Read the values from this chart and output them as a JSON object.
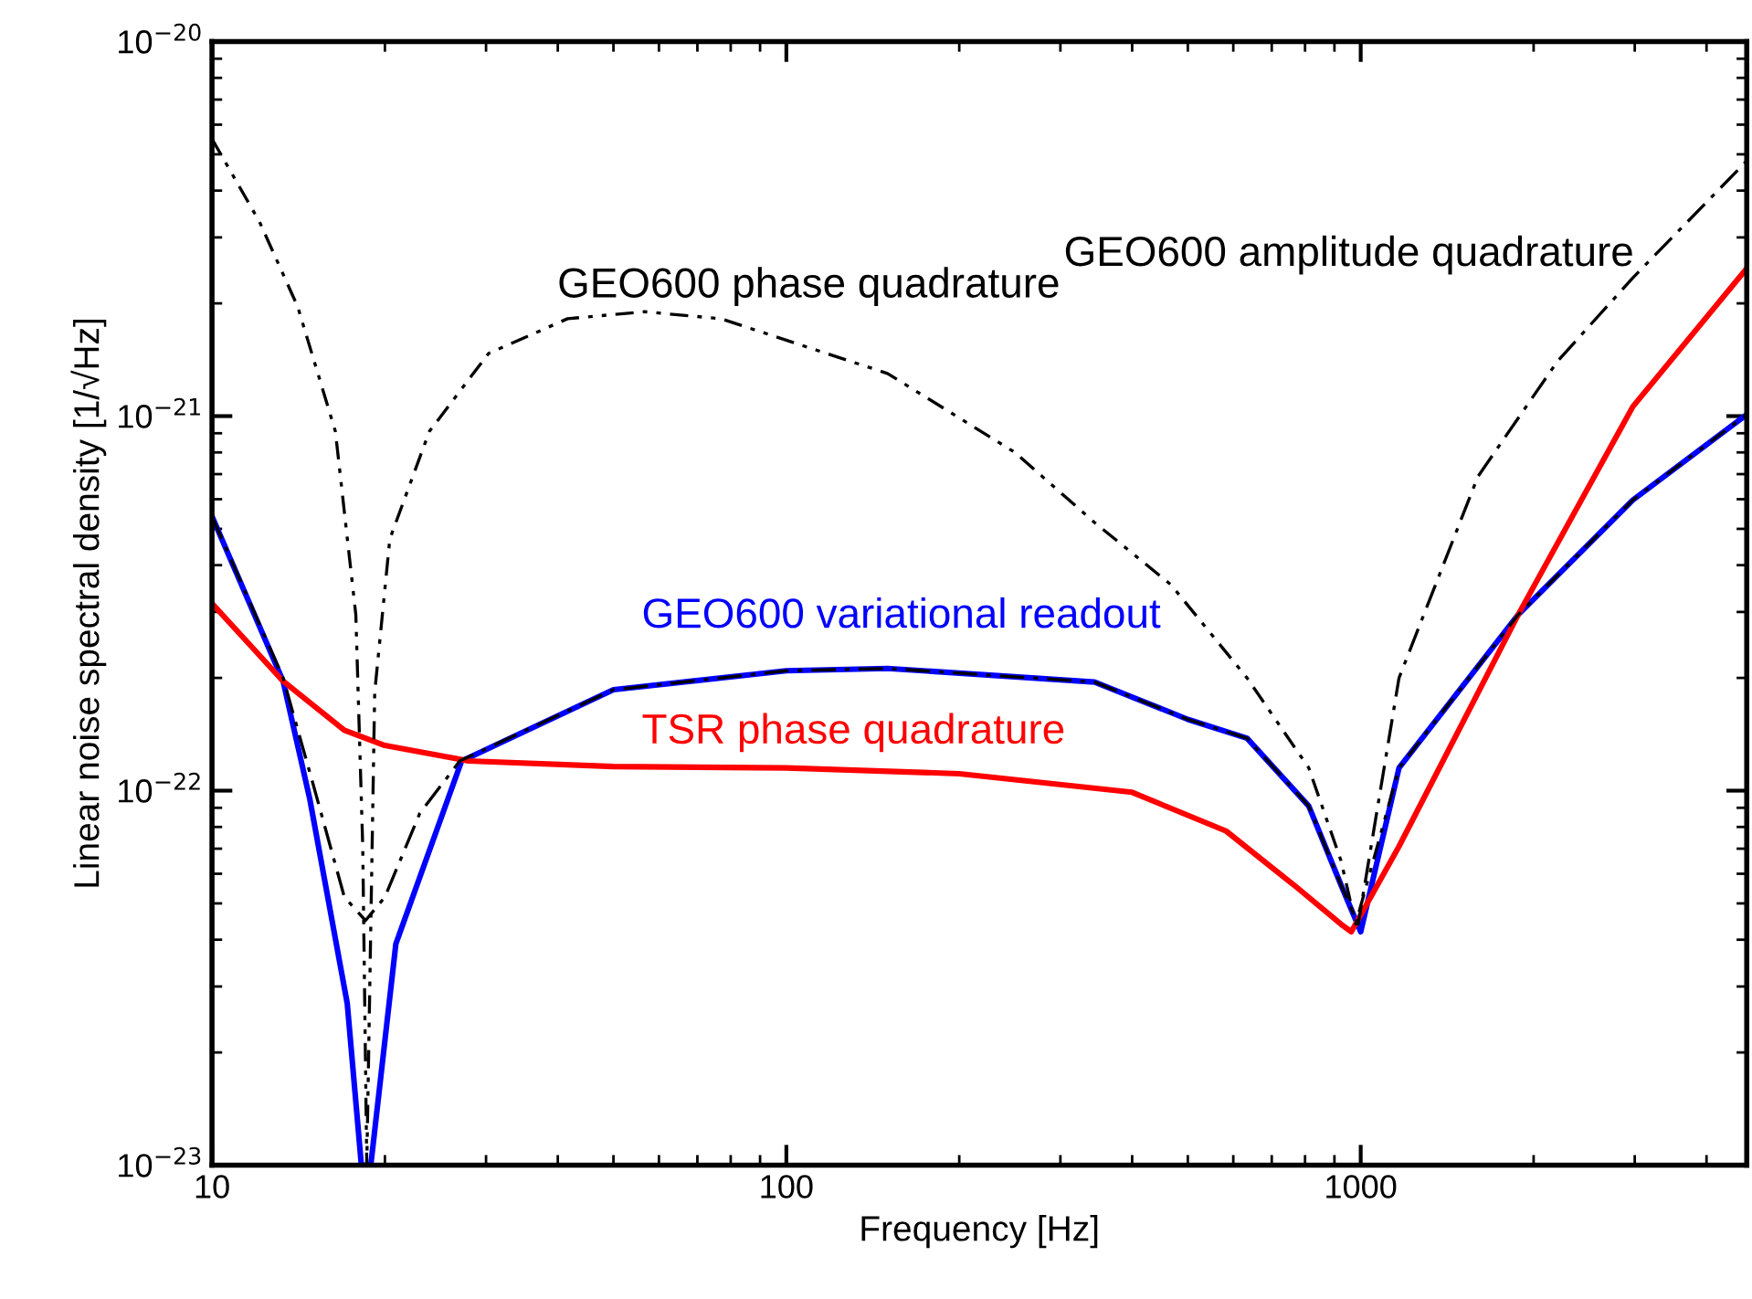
{
  "chart_data": {
    "type": "line",
    "xlabel": "Frequency [Hz]",
    "ylabel": "Linear noise spectral density [1/√Hz]",
    "log": "xy",
    "grid": false,
    "legend": false,
    "xlim": [
      10,
      4700
    ],
    "ylim": [
      1e-23,
      1e-20
    ],
    "xticks": [
      10,
      100,
      1000
    ],
    "yticks": [
      {
        "value": 1e-23,
        "label": "10$^{−23}$"
      },
      {
        "value": 1e-22,
        "label": "10$^{−22}$"
      },
      {
        "value": 1e-21,
        "label": "10$^{−21}$"
      },
      {
        "value": 1e-20,
        "label": "10$^{−20}$"
      }
    ],
    "series": [
      {
        "name": "GEO600 phase quadrature",
        "color": "#000000",
        "line_style": "dashdotdot",
        "x": [
          10,
          12.1,
          14.1,
          16.4,
          17.8,
          18.3,
          18.6,
          19.2,
          20.4,
          23.9,
          30.3,
          41.6,
          56.6,
          76.9,
          150,
          250,
          344,
          467,
          634,
          812,
          924,
          980,
          1166,
          1880,
          2977,
          4700
        ],
        "values": [
          5.5e-21,
          3.3e-21,
          1.96e-21,
          9.1e-22,
          2.95e-22,
          7.1e-23,
          1e-23,
          1.83e-22,
          4.7e-22,
          9.1e-22,
          1.47e-21,
          1.82e-21,
          1.9e-21,
          1.82e-21,
          1.3e-21,
          8e-22,
          5.2e-22,
          3.55e-22,
          2e-22,
          1.15e-22,
          6.5e-23,
          4.4e-23,
          1.15e-22,
          2.95e-22,
          5.97e-22,
          1.01e-21
        ]
      },
      {
        "name": "GEO600 amplitude quadrature",
        "color": "#000000",
        "line_style": "dashdot",
        "x": [
          10,
          13.3,
          15,
          17,
          18.5,
          20,
          23,
          27,
          50,
          100,
          150,
          344,
          500,
          634,
          812,
          924,
          990,
          1166,
          1600,
          2200,
          2977,
          4700
        ],
        "values": [
          5.4e-22,
          2e-22,
          1.04e-22,
          5.2e-23,
          4.5e-23,
          5.2e-23,
          8.7e-23,
          1.2e-22,
          1.86e-22,
          2.09e-22,
          2.12e-22,
          1.95e-22,
          1.55e-22,
          1.38e-22,
          9.1e-23,
          5.6e-23,
          4.4e-23,
          2e-22,
          6.9e-22,
          1.4e-21,
          2.34e-21,
          4.8e-21
        ]
      },
      {
        "name": "GEO600 variational readout",
        "color": "#0000ff",
        "line_style": "solid",
        "x": [
          10,
          13.3,
          14.8,
          17.2,
          18.2,
          18.9,
          20.9,
          27.2,
          50,
          100,
          150,
          344,
          500,
          634,
          812,
          924,
          1000,
          1166,
          1880,
          2977,
          4700
        ],
        "values": [
          5.4e-22,
          1.96e-22,
          9.5e-23,
          2.7e-23,
          1e-23,
          1e-23,
          3.9e-23,
          1.2e-22,
          1.86e-22,
          2.09e-22,
          2.12e-22,
          1.95e-22,
          1.55e-22,
          1.38e-22,
          9.1e-23,
          5.6e-23,
          4.2e-23,
          1.15e-22,
          2.95e-22,
          5.97e-22,
          1.01e-21
        ]
      },
      {
        "name": "TSR phase quadrature",
        "color": "#ff0000",
        "line_style": "solid",
        "x": [
          10,
          13.3,
          17,
          20,
          28,
          50,
          100,
          200,
          400,
          583,
          765,
          924,
          963,
          1166,
          1880,
          2977,
          4700
        ],
        "values": [
          3.16e-22,
          1.96e-22,
          1.45e-22,
          1.32e-22,
          1.2e-22,
          1.16e-22,
          1.15e-22,
          1.11e-22,
          9.9e-23,
          7.8e-23,
          5.6e-23,
          4.4e-23,
          4.2e-23,
          7.1e-23,
          2.95e-22,
          1.06e-21,
          2.48e-21
        ]
      }
    ]
  }
}
